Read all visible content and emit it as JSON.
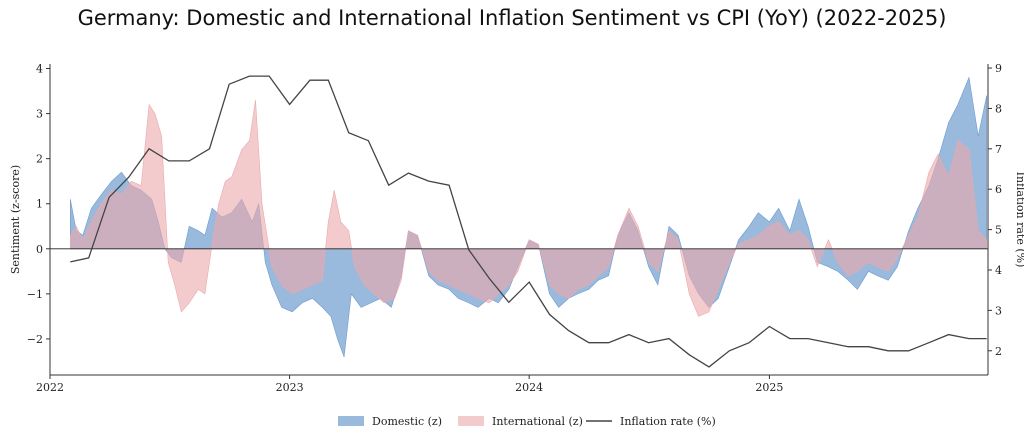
{
  "title": "Germany: Domestic and International Inflation Sentiment vs CPI (YoY) (2022-2025)",
  "colors": {
    "domestic": "#6e9ccf",
    "international": "#eca8ab",
    "inflation": "#444444",
    "axis": "#333333"
  },
  "chart_data": {
    "type": "area",
    "title": "Germany: Domestic and International Inflation Sentiment vs CPI (YoY) (2022-2025)",
    "ylabel": "Sentiment (z-score)",
    "y2label": "Inflation rate (%)",
    "x_ticks": [
      "2022",
      "2023",
      "2024",
      "2025"
    ],
    "xlim": [
      "2022-01-01",
      "2025-11-30"
    ],
    "ylim": [
      -2.8,
      4.1
    ],
    "y_ticks": [
      -2,
      -1,
      0,
      1,
      2,
      3,
      4
    ],
    "y2lim": [
      1.4,
      9.1
    ],
    "y2_ticks": [
      2,
      3,
      4,
      5,
      6,
      7,
      8,
      9
    ],
    "legend": [
      "Domestic (z)",
      "International (z)",
      "Inflation rate (%)"
    ],
    "legend_position": "bottom-center",
    "grid": false,
    "series": [
      {
        "name": "Domestic (z)",
        "type": "area",
        "points": [
          [
            "2022-02-01",
            1.1
          ],
          [
            "2022-02-10",
            0.4
          ],
          [
            "2022-02-20",
            0.3
          ],
          [
            "2022-03-05",
            0.9
          ],
          [
            "2022-03-20",
            1.2
          ],
          [
            "2022-04-05",
            1.5
          ],
          [
            "2022-04-20",
            1.7
          ],
          [
            "2022-05-05",
            1.4
          ],
          [
            "2022-05-20",
            1.3
          ],
          [
            "2022-06-05",
            1.1
          ],
          [
            "2022-06-15",
            0.6
          ],
          [
            "2022-06-25",
            0.0
          ],
          [
            "2022-07-05",
            -0.2
          ],
          [
            "2022-07-20",
            -0.3
          ],
          [
            "2022-08-01",
            0.5
          ],
          [
            "2022-08-15",
            0.4
          ],
          [
            "2022-08-25",
            0.3
          ],
          [
            "2022-09-05",
            0.9
          ],
          [
            "2022-09-20",
            0.7
          ],
          [
            "2022-10-05",
            0.8
          ],
          [
            "2022-10-20",
            1.1
          ],
          [
            "2022-11-05",
            0.6
          ],
          [
            "2022-11-15",
            1.0
          ],
          [
            "2022-11-25",
            -0.3
          ],
          [
            "2022-12-05",
            -0.8
          ],
          [
            "2022-12-20",
            -1.3
          ],
          [
            "2023-01-05",
            -1.4
          ],
          [
            "2023-01-20",
            -1.2
          ],
          [
            "2023-02-05",
            -1.1
          ],
          [
            "2023-02-20",
            -1.3
          ],
          [
            "2023-03-05",
            -1.5
          ],
          [
            "2023-03-15",
            -2.0
          ],
          [
            "2023-03-25",
            -2.4
          ],
          [
            "2023-04-05",
            -1.0
          ],
          [
            "2023-04-20",
            -1.3
          ],
          [
            "2023-05-05",
            -1.2
          ],
          [
            "2023-05-20",
            -1.1
          ],
          [
            "2023-06-05",
            -1.3
          ],
          [
            "2023-06-20",
            -0.6
          ],
          [
            "2023-07-01",
            0.4
          ],
          [
            "2023-07-15",
            0.3
          ],
          [
            "2023-08-01",
            -0.6
          ],
          [
            "2023-08-15",
            -0.8
          ],
          [
            "2023-09-01",
            -0.9
          ],
          [
            "2023-09-15",
            -1.1
          ],
          [
            "2023-10-01",
            -1.2
          ],
          [
            "2023-10-15",
            -1.3
          ],
          [
            "2023-11-01",
            -1.1
          ],
          [
            "2023-11-15",
            -1.2
          ],
          [
            "2023-12-01",
            -0.9
          ],
          [
            "2023-12-15",
            -0.4
          ],
          [
            "2024-01-01",
            0.2
          ],
          [
            "2024-01-15",
            0.1
          ],
          [
            "2024-02-01",
            -1.0
          ],
          [
            "2024-02-15",
            -1.3
          ],
          [
            "2024-03-01",
            -1.1
          ],
          [
            "2024-03-15",
            -1.0
          ],
          [
            "2024-04-01",
            -0.9
          ],
          [
            "2024-04-15",
            -0.7
          ],
          [
            "2024-05-01",
            -0.6
          ],
          [
            "2024-05-15",
            0.3
          ],
          [
            "2024-06-01",
            0.8
          ],
          [
            "2024-06-15",
            0.4
          ],
          [
            "2024-07-01",
            -0.4
          ],
          [
            "2024-07-15",
            -0.8
          ],
          [
            "2024-08-01",
            0.5
          ],
          [
            "2024-08-15",
            0.3
          ],
          [
            "2024-09-01",
            -0.6
          ],
          [
            "2024-09-15",
            -1.0
          ],
          [
            "2024-10-01",
            -1.3
          ],
          [
            "2024-10-15",
            -1.1
          ],
          [
            "2024-11-01",
            -0.4
          ],
          [
            "2024-11-15",
            0.2
          ],
          [
            "2024-12-01",
            0.5
          ],
          [
            "2024-12-15",
            0.8
          ],
          [
            "2025-01-01",
            0.6
          ],
          [
            "2025-01-15",
            0.9
          ],
          [
            "2025-02-01",
            0.4
          ],
          [
            "2025-02-15",
            1.1
          ],
          [
            "2025-03-01",
            0.5
          ],
          [
            "2025-03-15",
            -0.3
          ],
          [
            "2025-04-01",
            -0.4
          ],
          [
            "2025-04-15",
            -0.5
          ],
          [
            "2025-05-01",
            -0.7
          ],
          [
            "2025-05-15",
            -0.9
          ],
          [
            "2025-06-01",
            -0.5
          ],
          [
            "2025-06-15",
            -0.6
          ],
          [
            "2025-07-01",
            -0.7
          ],
          [
            "2025-07-15",
            -0.4
          ],
          [
            "2025-08-01",
            0.4
          ],
          [
            "2025-08-15",
            0.9
          ],
          [
            "2025-09-01",
            1.4
          ],
          [
            "2025-09-15",
            2.0
          ],
          [
            "2025-10-01",
            2.8
          ],
          [
            "2025-10-15",
            3.2
          ],
          [
            "2025-11-01",
            3.8
          ],
          [
            "2025-11-15",
            2.5
          ],
          [
            "2025-11-28",
            3.4
          ]
        ]
      },
      {
        "name": "International (z)",
        "type": "area",
        "points": [
          [
            "2022-02-01",
            0.3
          ],
          [
            "2022-02-10",
            0.5
          ],
          [
            "2022-02-20",
            0.2
          ],
          [
            "2022-03-05",
            0.6
          ],
          [
            "2022-03-20",
            1.0
          ],
          [
            "2022-04-05",
            1.3
          ],
          [
            "2022-04-20",
            1.2
          ],
          [
            "2022-05-05",
            1.5
          ],
          [
            "2022-05-20",
            1.4
          ],
          [
            "2022-06-01",
            3.2
          ],
          [
            "2022-06-10",
            3.0
          ],
          [
            "2022-06-20",
            2.5
          ],
          [
            "2022-06-30",
            -0.3
          ],
          [
            "2022-07-10",
            -0.8
          ],
          [
            "2022-07-20",
            -1.4
          ],
          [
            "2022-08-01",
            -1.2
          ],
          [
            "2022-08-15",
            -0.9
          ],
          [
            "2022-08-25",
            -1.0
          ],
          [
            "2022-09-05",
            0.1
          ],
          [
            "2022-09-15",
            1.0
          ],
          [
            "2022-09-25",
            1.5
          ],
          [
            "2022-10-05",
            1.6
          ],
          [
            "2022-10-20",
            2.2
          ],
          [
            "2022-11-01",
            2.4
          ],
          [
            "2022-11-10",
            3.3
          ],
          [
            "2022-11-20",
            1.0
          ],
          [
            "2022-12-05",
            -0.4
          ],
          [
            "2022-12-20",
            -0.8
          ],
          [
            "2023-01-05",
            -1.0
          ],
          [
            "2023-01-20",
            -0.9
          ],
          [
            "2023-02-05",
            -0.8
          ],
          [
            "2023-02-20",
            -0.7
          ],
          [
            "2023-03-01",
            0.6
          ],
          [
            "2023-03-10",
            1.3
          ],
          [
            "2023-03-20",
            0.6
          ],
          [
            "2023-04-01",
            0.4
          ],
          [
            "2023-04-10",
            -0.4
          ],
          [
            "2023-04-25",
            -0.8
          ],
          [
            "2023-05-10",
            -1.0
          ],
          [
            "2023-05-25",
            -1.2
          ],
          [
            "2023-06-10",
            -1.1
          ],
          [
            "2023-06-20",
            -0.7
          ],
          [
            "2023-07-01",
            0.4
          ],
          [
            "2023-07-15",
            0.3
          ],
          [
            "2023-08-01",
            -0.5
          ],
          [
            "2023-08-15",
            -0.7
          ],
          [
            "2023-09-01",
            -0.8
          ],
          [
            "2023-09-15",
            -0.9
          ],
          [
            "2023-10-01",
            -1.0
          ],
          [
            "2023-10-15",
            -1.1
          ],
          [
            "2023-11-01",
            -1.2
          ],
          [
            "2023-11-15",
            -1.0
          ],
          [
            "2023-12-01",
            -0.8
          ],
          [
            "2023-12-15",
            -0.5
          ],
          [
            "2024-01-01",
            0.2
          ],
          [
            "2024-01-15",
            0.1
          ],
          [
            "2024-02-01",
            -0.8
          ],
          [
            "2024-02-15",
            -1.0
          ],
          [
            "2024-03-01",
            -1.1
          ],
          [
            "2024-03-15",
            -0.9
          ],
          [
            "2024-04-01",
            -0.8
          ],
          [
            "2024-04-15",
            -0.6
          ],
          [
            "2024-05-01",
            -0.4
          ],
          [
            "2024-05-15",
            0.3
          ],
          [
            "2024-06-01",
            0.9
          ],
          [
            "2024-06-15",
            0.5
          ],
          [
            "2024-07-01",
            -0.3
          ],
          [
            "2024-07-15",
            -0.5
          ],
          [
            "2024-08-01",
            0.4
          ],
          [
            "2024-08-15",
            0.2
          ],
          [
            "2024-09-01",
            -1.0
          ],
          [
            "2024-09-15",
            -1.5
          ],
          [
            "2024-10-01",
            -1.4
          ],
          [
            "2024-10-15",
            -0.9
          ],
          [
            "2024-11-01",
            -0.3
          ],
          [
            "2024-11-15",
            0.1
          ],
          [
            "2024-12-01",
            0.2
          ],
          [
            "2024-12-15",
            0.3
          ],
          [
            "2025-01-01",
            0.5
          ],
          [
            "2025-01-15",
            0.6
          ],
          [
            "2025-02-01",
            0.3
          ],
          [
            "2025-02-15",
            0.4
          ],
          [
            "2025-03-01",
            0.2
          ],
          [
            "2025-03-15",
            -0.4
          ],
          [
            "2025-04-01",
            0.2
          ],
          [
            "2025-04-15",
            -0.3
          ],
          [
            "2025-05-01",
            -0.6
          ],
          [
            "2025-05-15",
            -0.5
          ],
          [
            "2025-06-01",
            -0.3
          ],
          [
            "2025-06-15",
            -0.4
          ],
          [
            "2025-07-01",
            -0.5
          ],
          [
            "2025-07-15",
            -0.2
          ],
          [
            "2025-08-01",
            0.3
          ],
          [
            "2025-08-15",
            0.7
          ],
          [
            "2025-09-01",
            1.7
          ],
          [
            "2025-09-15",
            2.1
          ],
          [
            "2025-10-01",
            1.6
          ],
          [
            "2025-10-15",
            2.4
          ],
          [
            "2025-11-01",
            2.2
          ],
          [
            "2025-11-15",
            0.4
          ],
          [
            "2025-11-28",
            0.2
          ]
        ]
      },
      {
        "name": "Inflation rate (%)",
        "type": "line",
        "axis": "right",
        "points": [
          [
            "2022-02-01",
            4.2
          ],
          [
            "2022-03-01",
            4.3
          ],
          [
            "2022-04-01",
            5.8
          ],
          [
            "2022-05-01",
            6.3
          ],
          [
            "2022-06-01",
            7.0
          ],
          [
            "2022-07-01",
            6.7
          ],
          [
            "2022-08-01",
            6.7
          ],
          [
            "2022-09-01",
            7.0
          ],
          [
            "2022-10-01",
            8.6
          ],
          [
            "2022-11-01",
            8.8
          ],
          [
            "2022-12-01",
            8.8
          ],
          [
            "2023-01-01",
            8.1
          ],
          [
            "2023-02-01",
            8.7
          ],
          [
            "2023-03-01",
            8.7
          ],
          [
            "2023-04-01",
            7.4
          ],
          [
            "2023-05-01",
            7.2
          ],
          [
            "2023-06-01",
            6.1
          ],
          [
            "2023-07-01",
            6.4
          ],
          [
            "2023-08-01",
            6.2
          ],
          [
            "2023-09-01",
            6.1
          ],
          [
            "2023-10-01",
            4.5
          ],
          [
            "2023-11-01",
            3.8
          ],
          [
            "2023-12-01",
            3.2
          ],
          [
            "2024-01-01",
            3.7
          ],
          [
            "2024-02-01",
            2.9
          ],
          [
            "2024-03-01",
            2.5
          ],
          [
            "2024-04-01",
            2.2
          ],
          [
            "2024-05-01",
            2.2
          ],
          [
            "2024-06-01",
            2.4
          ],
          [
            "2024-07-01",
            2.2
          ],
          [
            "2024-08-01",
            2.3
          ],
          [
            "2024-09-01",
            1.9
          ],
          [
            "2024-10-01",
            1.6
          ],
          [
            "2024-11-01",
            2.0
          ],
          [
            "2024-12-01",
            2.2
          ],
          [
            "2025-01-01",
            2.6
          ],
          [
            "2025-02-01",
            2.3
          ],
          [
            "2025-03-01",
            2.3
          ],
          [
            "2025-04-01",
            2.2
          ],
          [
            "2025-05-01",
            2.1
          ],
          [
            "2025-06-01",
            2.1
          ],
          [
            "2025-07-01",
            2.0
          ],
          [
            "2025-08-01",
            2.0
          ],
          [
            "2025-09-01",
            2.2
          ],
          [
            "2025-10-01",
            2.4
          ],
          [
            "2025-11-01",
            2.3
          ],
          [
            "2025-11-28",
            2.3
          ]
        ]
      }
    ]
  }
}
